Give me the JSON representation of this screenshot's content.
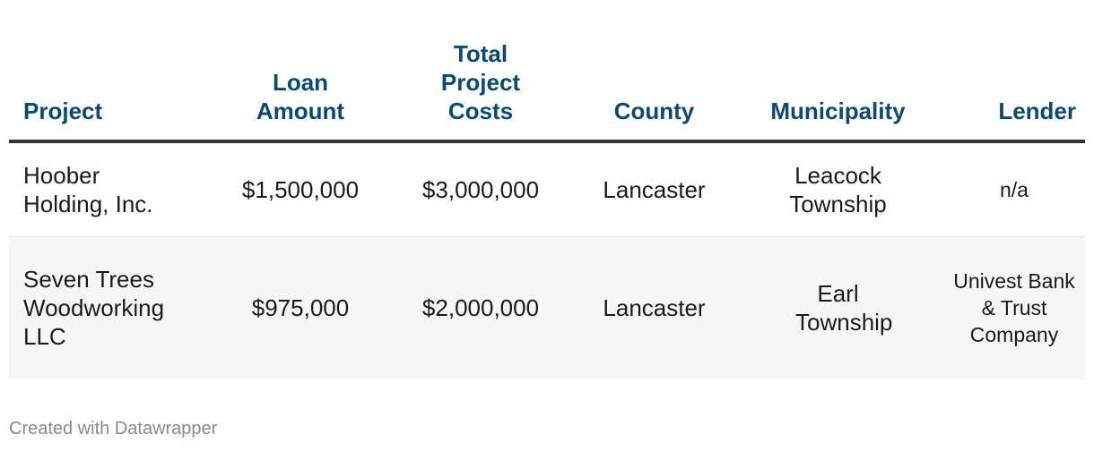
{
  "table": {
    "headers": {
      "project": "Project",
      "loan_amount": "Loan Amount",
      "total_project_costs": "Total Project Costs",
      "county": "County",
      "municipality": "Municipality",
      "lender": "Lender"
    },
    "rows": [
      {
        "project": "Hoober Holding, Inc.",
        "loan_amount": "$1,500,000",
        "total_project_costs": "$3,000,000",
        "county": "Lancaster",
        "municipality": "Leacock Township",
        "lender": "n/a"
      },
      {
        "project": "Seven Trees Woodworking LLC",
        "loan_amount": "$975,000",
        "total_project_costs": "$2,000,000",
        "county": "Lancaster",
        "municipality": "Earl Township",
        "lender": "Univest Bank & Trust Company"
      }
    ]
  },
  "footer": {
    "credit": "Created with Datawrapper"
  },
  "colors": {
    "header_text": "#0a4a72",
    "header_rule": "#333333",
    "alt_row_bg": "#f6f6f6",
    "footer_text": "#8a8a8a"
  }
}
